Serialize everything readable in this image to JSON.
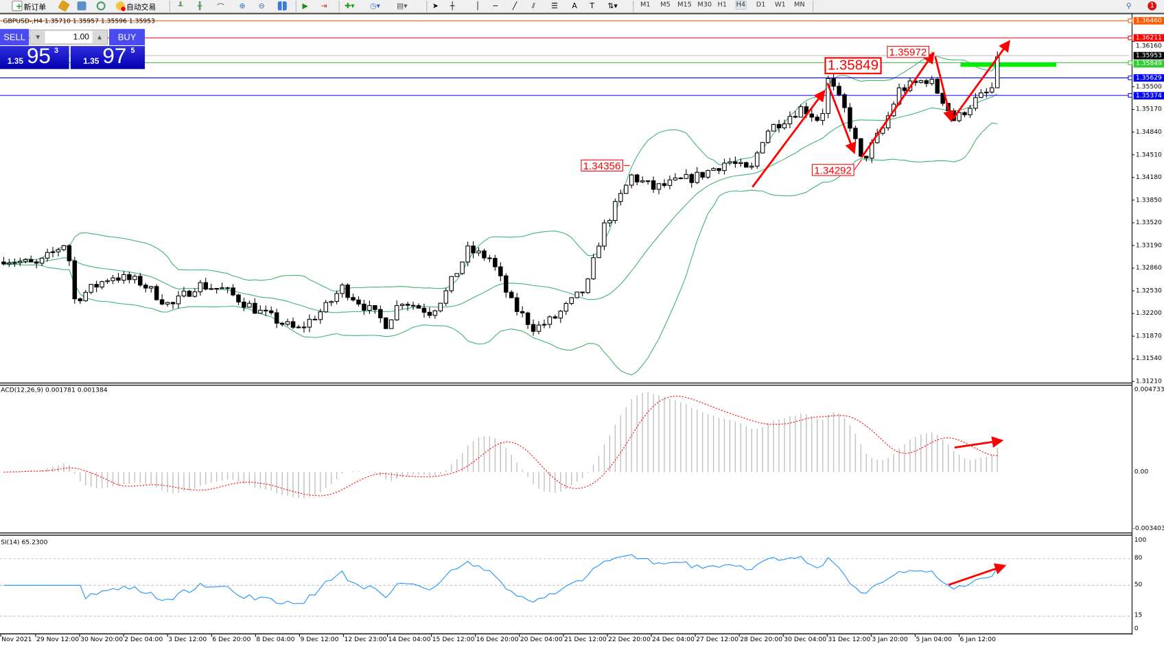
{
  "toolbar": {
    "new_order_label": "新订单",
    "auto_trading_label": "自动交易",
    "timeframes": [
      "M1",
      "M5",
      "M15",
      "M30",
      "H1",
      "H4",
      "D1",
      "W1",
      "MN"
    ],
    "active_timeframe": "H4",
    "icons": [
      "new-order-icon",
      "market-watch-icon",
      "navigator-icon",
      "signals-icon",
      "auto-trading-icon",
      "bar-chart-icon",
      "candlestick-icon",
      "line-chart-icon",
      "zoom-in-icon",
      "zoom-out-icon",
      "tile-windows-icon",
      "auto-scroll-icon",
      "chart-shift-icon",
      "indicators-icon",
      "periods-icon",
      "templates-icon",
      "cursor-icon",
      "crosshair-icon",
      "vertical-line-icon",
      "horizontal-line-icon",
      "trendline-icon",
      "equidistant-channel-icon",
      "fibonacci-icon",
      "text-icon",
      "text-label-icon",
      "arrows-icon",
      "search-icon",
      "notification-icon"
    ],
    "notification_count": "1"
  },
  "chart": {
    "symbol_line": "GBPUSD-,H4  1.35710 1.35957 1.35596 1.35953",
    "one_click": {
      "sell_label": "SELL",
      "buy_label": "BUY",
      "lot": "1.00",
      "sell_big": "1.35",
      "sell_pips": "95",
      "sell_point": "3",
      "buy_big": "1.35",
      "buy_pips": "97",
      "buy_point": "5"
    },
    "price_axis": [
      "1.36160",
      "1.35500",
      "1.35170",
      "1.34840",
      "1.34510",
      "1.34180",
      "1.33850",
      "1.33520",
      "1.33190",
      "1.32860",
      "1.32530",
      "1.32200",
      "1.31870",
      "1.31540",
      "1.31210"
    ],
    "levels": [
      {
        "price": "1.36460",
        "color": "#ff5a00"
      },
      {
        "price": "1.36211",
        "color": "#ff0000"
      },
      {
        "price": "1.35953",
        "color": "#000000"
      },
      {
        "price": "1.35849",
        "color": "#33cc33"
      },
      {
        "price": "1.35629",
        "color": "#0000ff"
      },
      {
        "price": "1.35374",
        "color": "#0000ff"
      }
    ],
    "annotations": [
      "1.34356",
      "1.35849",
      "1.35972",
      "1.34292"
    ],
    "annotation_color": "#ff0000",
    "band_color": "#3cb371"
  },
  "macd": {
    "label": "ACD(12,26,9) 0.001781 0.001384",
    "axis": [
      "0.004733",
      "0.00",
      "-0.003403"
    ],
    "signal_color": "#ff0000",
    "histogram_color": "#c0c0c0"
  },
  "rsi": {
    "label": "SI(14) 65.2300",
    "axis": [
      "100",
      "80",
      "50",
      "15",
      "0"
    ],
    "line_color": "#1e90ff"
  },
  "time_axis": [
    "Nov 2021",
    "29 Nov 12:00",
    "30 Nov 20:00",
    "2 Dec 04:00",
    "3 Dec 12:00",
    "6 Dec 20:00",
    "8 Dec 04:00",
    "9 Dec 12:00",
    "12 Dec 23:00",
    "14 Dec 04:00",
    "15 Dec 12:00",
    "16 Dec 20:00",
    "20 Dec 04:00",
    "21 Dec 12:00",
    "22 Dec 20:00",
    "24 Dec 04:00",
    "27 Dec 12:00",
    "28 Dec 20:00",
    "30 Dec 04:00",
    "31 Dec 12:00",
    "3 Jan 20:00",
    "5 Jan 04:00",
    "6 Jan 12:00"
  ]
}
